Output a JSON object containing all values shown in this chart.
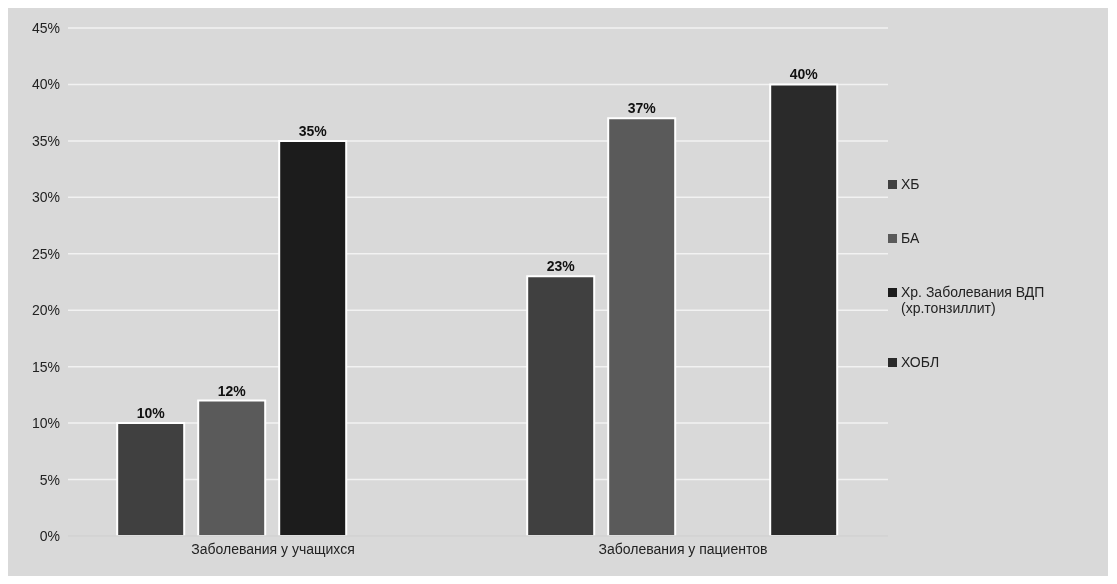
{
  "chart_data": {
    "type": "bar",
    "categories": [
      "Заболевания у учащихся",
      "Заболевания у пациентов"
    ],
    "series": [
      {
        "name": "ХБ",
        "color": "#404040",
        "values": [
          10,
          23
        ],
        "value_labels": [
          "10%",
          "23%"
        ]
      },
      {
        "name": "БА",
        "color": "#5a5a5a",
        "values": [
          12,
          37
        ],
        "value_labels": [
          "12%",
          "37%"
        ]
      },
      {
        "name": "Хр. Заболевания ВДП (хр.тонзиллит)",
        "color": "#1c1c1c",
        "values": [
          35,
          null
        ],
        "value_labels": [
          "35%",
          null
        ]
      },
      {
        "name": "ХОБЛ",
        "color": "#2a2a2a",
        "values": [
          null,
          40
        ],
        "value_labels": [
          null,
          "40%"
        ]
      }
    ],
    "ylim": [
      0,
      45
    ],
    "yticks": [
      {
        "value": 0,
        "label": "0%"
      },
      {
        "value": 5,
        "label": "5%"
      },
      {
        "value": 10,
        "label": "10%"
      },
      {
        "value": 15,
        "label": "15%"
      },
      {
        "value": 20,
        "label": "20%"
      },
      {
        "value": 25,
        "label": "25%"
      },
      {
        "value": 30,
        "label": "30%"
      },
      {
        "value": 35,
        "label": "35%"
      },
      {
        "value": 40,
        "label": "40%"
      },
      {
        "value": 45,
        "label": "45%"
      }
    ],
    "grid": "y",
    "legend": "right"
  }
}
